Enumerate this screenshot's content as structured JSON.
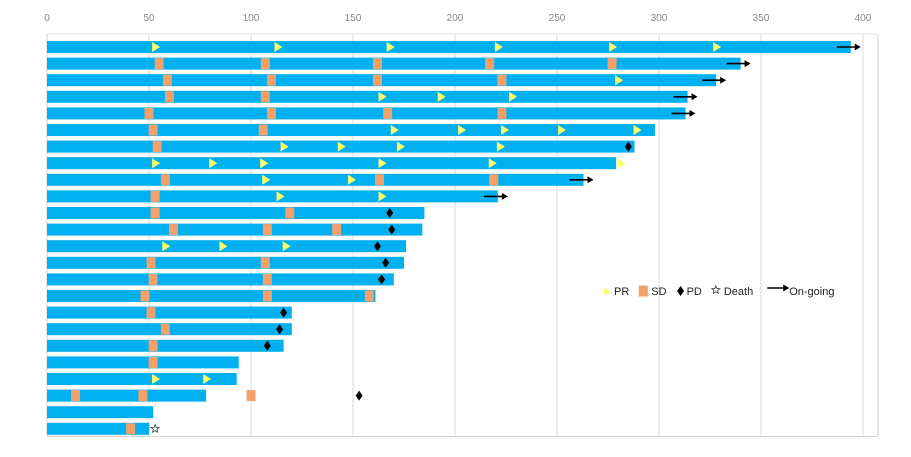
{
  "chart_data": {
    "type": "bar",
    "orientation": "horizontal",
    "xlim": [
      0,
      400
    ],
    "x_ticks": [
      "0",
      "50",
      "100",
      "150",
      "200",
      "250",
      "300",
      "350",
      "400"
    ],
    "x_axis_position": "top",
    "grid": true,
    "legend_placement": "center-right",
    "colors": {
      "bar": "#00B0F0",
      "PR": "#FFFF66",
      "SD": "#F4A06A",
      "PD": "#000000",
      "Death": "#333333",
      "On-going": "#000000"
    },
    "legend": [
      {
        "key": "PR",
        "label": "PR",
        "symbol": "triangle"
      },
      {
        "key": "SD",
        "label": "SD",
        "symbol": "square"
      },
      {
        "key": "PD",
        "label": "PD",
        "symbol": "diamond"
      },
      {
        "key": "Death",
        "label": "Death",
        "symbol": "star"
      },
      {
        "key": "On-going",
        "label": "On-going",
        "symbol": "arrow"
      }
    ],
    "patients": [
      {
        "duration": 394,
        "PR": [
          53,
          113,
          168,
          221,
          277,
          328
        ],
        "SD": [],
        "PD": [],
        "death": null,
        "ongoing": true
      },
      {
        "duration": 340,
        "PR": [],
        "SD": [
          55,
          107,
          162,
          217,
          277
        ],
        "PD": [],
        "death": null,
        "ongoing": true
      },
      {
        "duration": 328,
        "PR": [
          280
        ],
        "SD": [
          59,
          110,
          162,
          223
        ],
        "PD": [],
        "death": null,
        "ongoing": true
      },
      {
        "duration": 314,
        "PR": [
          164,
          193,
          228
        ],
        "SD": [
          60,
          107
        ],
        "PD": [],
        "death": null,
        "ongoing": true
      },
      {
        "duration": 313,
        "PR": [],
        "SD": [
          50,
          110,
          167,
          223
        ],
        "PD": [],
        "death": null,
        "ongoing": true
      },
      {
        "duration": 298,
        "PR": [
          170,
          203,
          224,
          252,
          289
        ],
        "SD": [
          52,
          106
        ],
        "PD": [],
        "death": null,
        "ongoing": false
      },
      {
        "duration": 288,
        "PR": [
          116,
          144,
          173,
          222
        ],
        "SD": [
          54
        ],
        "PD": [
          285
        ],
        "death": null,
        "ongoing": false
      },
      {
        "duration": 279,
        "PR": [
          53,
          81,
          106,
          164,
          218,
          281
        ],
        "SD": [],
        "PD": [],
        "death": null,
        "ongoing": false
      },
      {
        "duration": 263,
        "PR": [
          107,
          149
        ],
        "SD": [
          58,
          163,
          219
        ],
        "PD": [],
        "death": null,
        "ongoing": true
      },
      {
        "duration": 221,
        "PR": [
          114,
          164
        ],
        "SD": [
          53
        ],
        "PD": [],
        "death": null,
        "ongoing": true
      },
      {
        "duration": 185,
        "PR": [],
        "SD": [
          53,
          119
        ],
        "PD": [
          168
        ],
        "death": null,
        "ongoing": false
      },
      {
        "duration": 184,
        "PR": [],
        "SD": [
          62,
          108,
          142
        ],
        "PD": [
          169
        ],
        "death": null,
        "ongoing": false
      },
      {
        "duration": 176,
        "PR": [
          58,
          86,
          117
        ],
        "SD": [],
        "PD": [
          162
        ],
        "death": null,
        "ongoing": false
      },
      {
        "duration": 175,
        "PR": [],
        "SD": [
          51,
          107
        ],
        "PD": [
          166
        ],
        "death": null,
        "ongoing": false
      },
      {
        "duration": 170,
        "PR": [],
        "SD": [
          52,
          108
        ],
        "PD": [
          164
        ],
        "death": null,
        "ongoing": false
      },
      {
        "duration": 161,
        "PR": [],
        "SD": [
          48,
          108,
          158
        ],
        "PD": [],
        "death": null,
        "ongoing": false
      },
      {
        "duration": 120,
        "PR": [],
        "SD": [
          51
        ],
        "PD": [
          116
        ],
        "death": null,
        "ongoing": false
      },
      {
        "duration": 120,
        "PR": [],
        "SD": [
          58
        ],
        "PD": [
          114
        ],
        "death": null,
        "ongoing": false
      },
      {
        "duration": 116,
        "PR": [],
        "SD": [
          52
        ],
        "PD": [
          108
        ],
        "death": null,
        "ongoing": false
      },
      {
        "duration": 94,
        "PR": [],
        "SD": [
          52
        ],
        "PD": [],
        "death": null,
        "ongoing": false
      },
      {
        "duration": 93,
        "PR": [
          53,
          78
        ],
        "SD": [],
        "PD": [],
        "death": null,
        "ongoing": false
      },
      {
        "duration": 78,
        "PR": [],
        "SD": [
          14,
          47,
          100
        ],
        "PD": [
          153
        ],
        "death": null,
        "ongoing": false
      },
      {
        "duration": 52,
        "PR": [],
        "SD": [],
        "PD": [],
        "death": null,
        "ongoing": false
      },
      {
        "duration": 50,
        "PR": [],
        "SD": [
          41
        ],
        "PD": [],
        "death": 53,
        "ongoing": false
      }
    ]
  }
}
